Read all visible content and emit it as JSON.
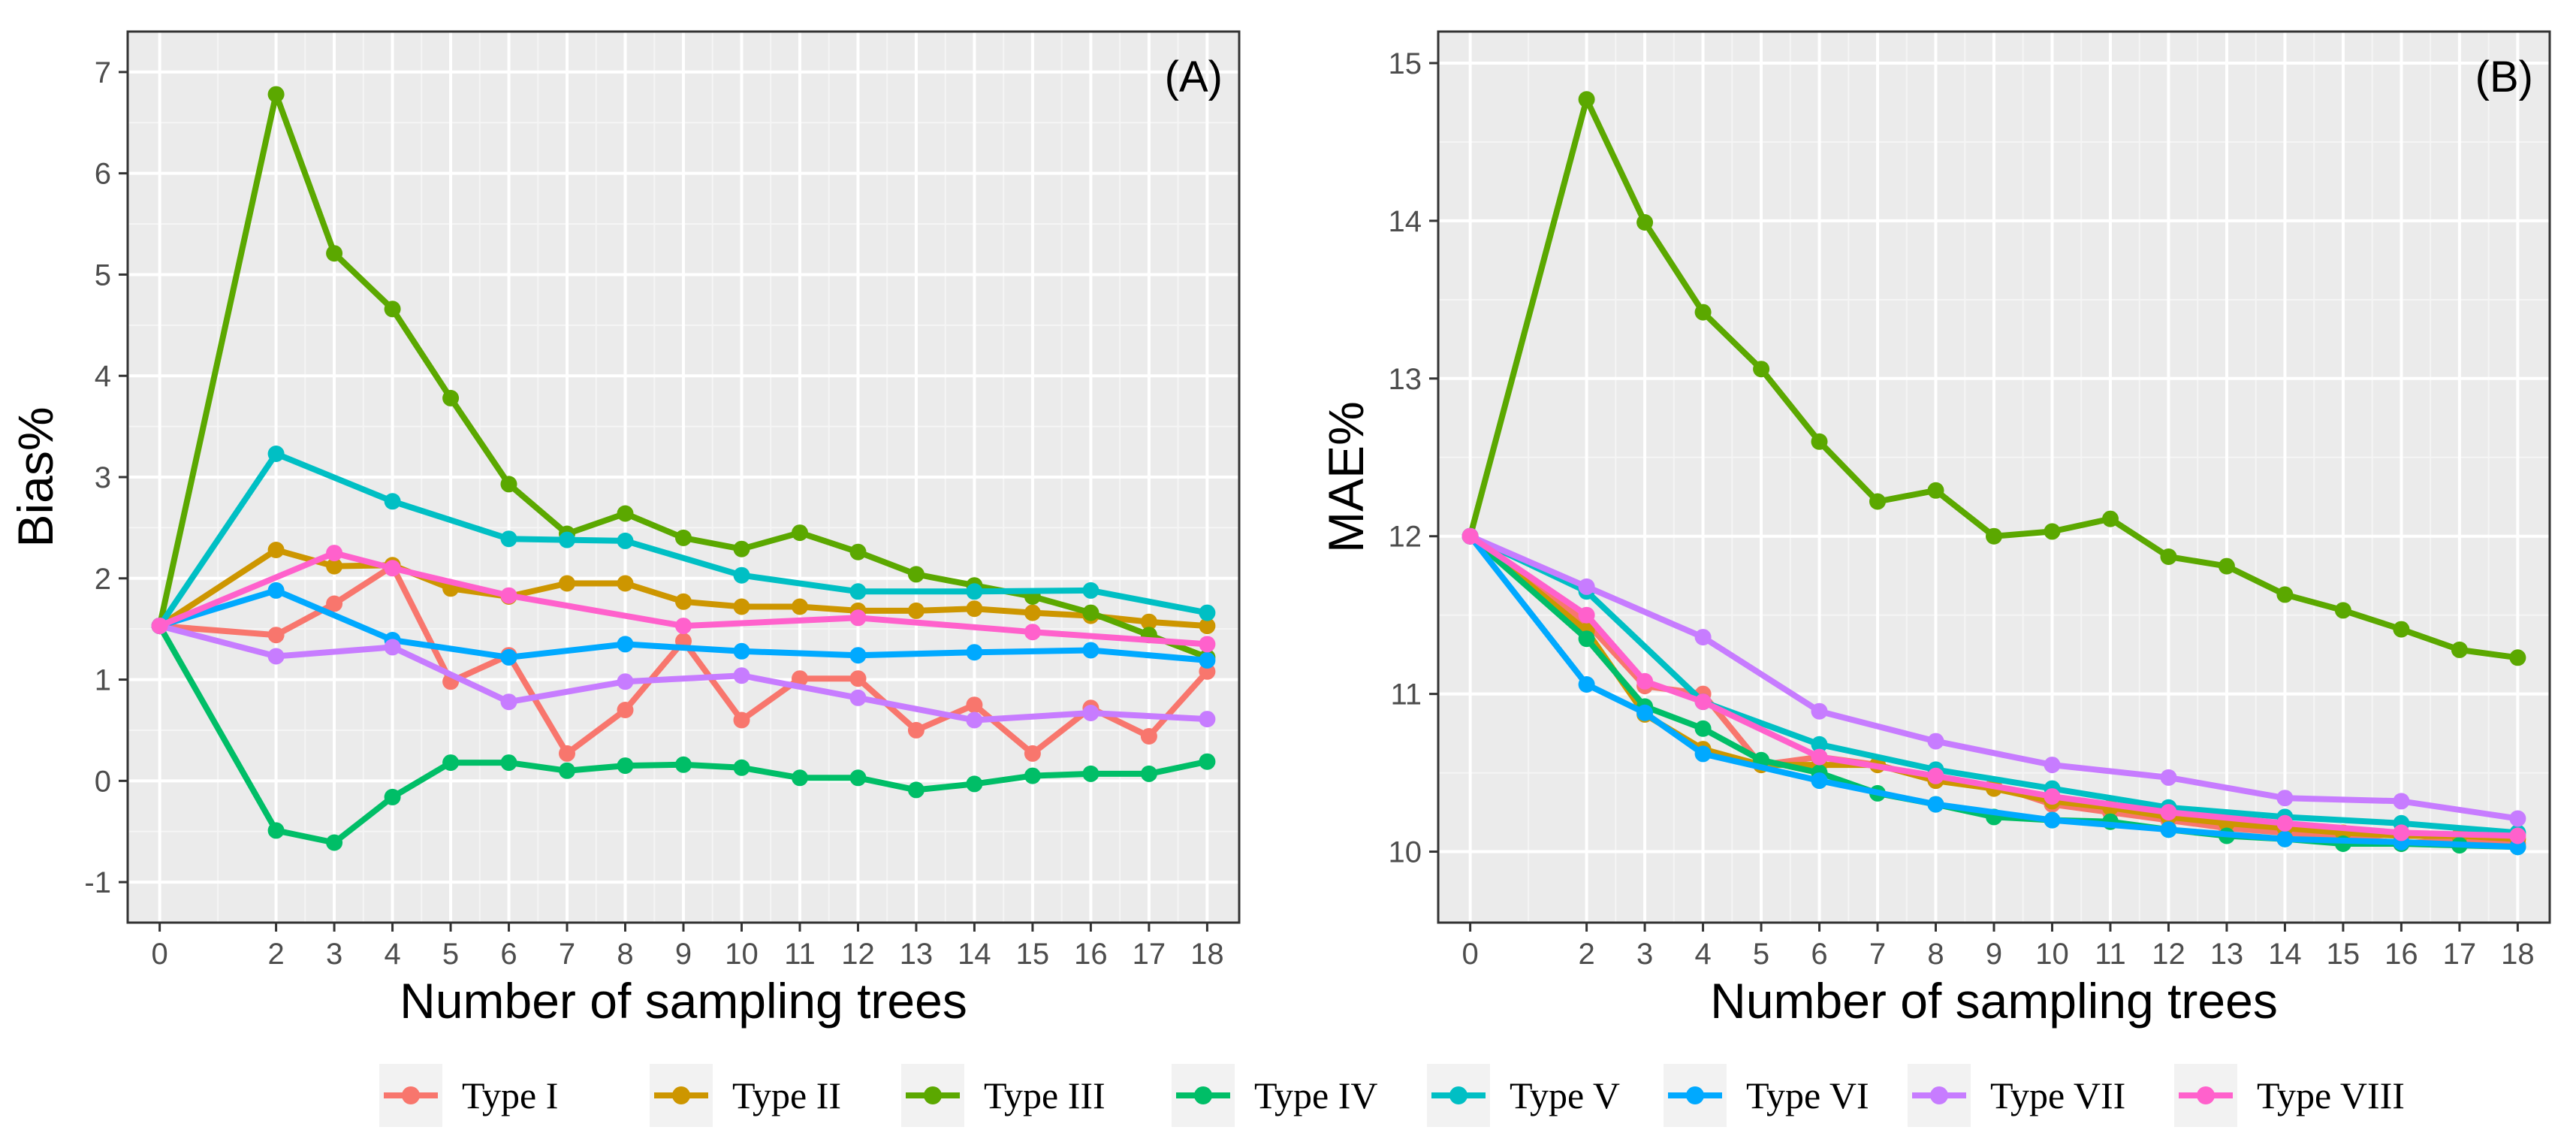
{
  "legend": {
    "items": [
      {
        "label": "Type I",
        "color": "#F8766D"
      },
      {
        "label": "Type II",
        "color": "#CD9600"
      },
      {
        "label": "Type III",
        "color": "#5BA800"
      },
      {
        "label": "Type IV",
        "color": "#00BE67"
      },
      {
        "label": "Type V",
        "color": "#00BFC4"
      },
      {
        "label": "Type VI",
        "color": "#00A9FF"
      },
      {
        "label": "Type VII",
        "color": "#C77CFF"
      },
      {
        "label": "Type VIII",
        "color": "#FF61CC"
      }
    ]
  },
  "chart_data": [
    {
      "type": "line",
      "panel_label": "(A)",
      "title": "",
      "xlabel": "Number of sampling trees",
      "ylabel": "Bias%",
      "x": [
        0,
        2,
        3,
        4,
        5,
        6,
        7,
        8,
        9,
        10,
        11,
        12,
        13,
        14,
        15,
        16,
        17,
        18
      ],
      "ylim": [
        -1.4,
        7.4
      ],
      "yticks": [
        -1,
        0,
        1,
        2,
        3,
        4,
        5,
        6,
        7
      ],
      "grid": true,
      "series": [
        {
          "name": "Type I",
          "color": "#F8766D",
          "values": [
            1.53,
            1.44,
            1.75,
            2.12,
            0.98,
            1.24,
            0.27,
            0.7,
            1.38,
            0.6,
            1.01,
            1.01,
            0.5,
            0.75,
            0.27,
            0.72,
            0.44,
            1.08
          ]
        },
        {
          "name": "Type II",
          "color": "#CD9600",
          "values": [
            1.53,
            2.28,
            2.12,
            2.13,
            1.9,
            1.82,
            1.95,
            1.95,
            1.77,
            1.72,
            1.72,
            1.68,
            1.68,
            1.7,
            1.66,
            1.63,
            1.57,
            1.53
          ]
        },
        {
          "name": "Type III",
          "color": "#5BA800",
          "values": [
            1.53,
            6.78,
            5.21,
            4.66,
            3.78,
            2.93,
            2.44,
            2.64,
            2.4,
            2.29,
            2.45,
            2.26,
            2.04,
            1.93,
            1.82,
            1.66,
            1.44,
            1.22
          ]
        },
        {
          "name": "Type IV",
          "color": "#00BE67",
          "values": [
            1.53,
            -0.49,
            -0.61,
            -0.16,
            0.18,
            0.18,
            0.1,
            0.15,
            0.16,
            0.13,
            0.03,
            0.03,
            -0.09,
            -0.03,
            0.05,
            0.07,
            0.07,
            0.19
          ]
        },
        {
          "name": "Type V",
          "color": "#00BFC4",
          "values": [
            1.53,
            3.23,
            null,
            2.76,
            null,
            2.39,
            2.38,
            2.37,
            null,
            2.03,
            null,
            1.87,
            null,
            1.87,
            null,
            1.88,
            null,
            1.66
          ]
        },
        {
          "name": "Type VI",
          "color": "#00A9FF",
          "values": [
            1.53,
            1.88,
            null,
            1.39,
            null,
            1.22,
            null,
            1.35,
            null,
            1.28,
            null,
            1.24,
            null,
            1.27,
            null,
            1.29,
            null,
            1.19
          ]
        },
        {
          "name": "Type VII",
          "color": "#C77CFF",
          "values": [
            1.53,
            1.23,
            null,
            1.32,
            null,
            0.78,
            null,
            0.98,
            null,
            1.04,
            null,
            0.82,
            null,
            0.6,
            null,
            0.67,
            null,
            0.61
          ]
        },
        {
          "name": "Type VIII",
          "color": "#FF61CC",
          "values": [
            1.53,
            null,
            2.25,
            2.1,
            null,
            1.83,
            null,
            null,
            1.53,
            null,
            null,
            1.61,
            null,
            null,
            1.47,
            null,
            null,
            1.35
          ]
        }
      ]
    },
    {
      "type": "line",
      "panel_label": "(B)",
      "title": "",
      "xlabel": "Number of sampling trees",
      "ylabel": "MAE%",
      "x": [
        0,
        2,
        3,
        4,
        5,
        6,
        7,
        8,
        9,
        10,
        11,
        12,
        13,
        14,
        15,
        16,
        17,
        18
      ],
      "ylim": [
        9.55,
        15.2
      ],
      "yticks": [
        10,
        11,
        12,
        13,
        14,
        15
      ],
      "grid": true,
      "series": [
        {
          "name": "Type I",
          "color": "#F8766D",
          "values": [
            12.0,
            11.45,
            11.05,
            11.0,
            10.55,
            10.6,
            10.55,
            10.45,
            10.42,
            10.3,
            10.25,
            10.2,
            10.15,
            10.12,
            10.1,
            10.05,
            10.08,
            10.05
          ]
        },
        {
          "name": "Type II",
          "color": "#CD9600",
          "values": [
            12.0,
            11.4,
            10.87,
            10.65,
            10.55,
            10.55,
            10.55,
            10.45,
            10.4,
            10.32,
            10.28,
            10.22,
            10.18,
            10.15,
            10.12,
            10.1,
            10.1,
            10.08
          ]
        },
        {
          "name": "Type III",
          "color": "#5BA800",
          "values": [
            12.0,
            14.77,
            13.99,
            13.42,
            13.06,
            12.6,
            12.22,
            12.29,
            12.0,
            12.03,
            12.11,
            11.87,
            11.81,
            11.63,
            11.53,
            11.41,
            11.28,
            11.23
          ]
        },
        {
          "name": "Type IV",
          "color": "#00BE67",
          "values": [
            12.0,
            11.35,
            10.92,
            10.78,
            10.58,
            10.5,
            10.37,
            10.3,
            10.22,
            10.2,
            10.19,
            10.14,
            10.1,
            10.08,
            10.05,
            10.05,
            10.04,
            10.03
          ]
        },
        {
          "name": "Type V",
          "color": "#00BFC4",
          "values": [
            12.0,
            11.65,
            null,
            10.95,
            null,
            10.68,
            null,
            10.52,
            null,
            10.4,
            null,
            10.28,
            null,
            10.22,
            null,
            10.18,
            null,
            10.12
          ]
        },
        {
          "name": "Type VI",
          "color": "#00A9FF",
          "values": [
            12.0,
            11.06,
            10.88,
            10.62,
            null,
            10.45,
            null,
            10.3,
            null,
            10.2,
            null,
            10.14,
            null,
            10.08,
            null,
            10.06,
            null,
            10.03
          ]
        },
        {
          "name": "Type VII",
          "color": "#C77CFF",
          "values": [
            12.0,
            11.68,
            null,
            11.36,
            null,
            10.89,
            null,
            10.7,
            null,
            10.55,
            null,
            10.47,
            null,
            10.34,
            null,
            10.32,
            null,
            10.21
          ]
        },
        {
          "name": "Type VIII",
          "color": "#FF61CC",
          "values": [
            12.0,
            11.5,
            11.08,
            10.95,
            null,
            10.6,
            null,
            10.48,
            null,
            10.35,
            null,
            10.25,
            null,
            10.18,
            null,
            10.12,
            null,
            10.1
          ]
        }
      ]
    }
  ]
}
